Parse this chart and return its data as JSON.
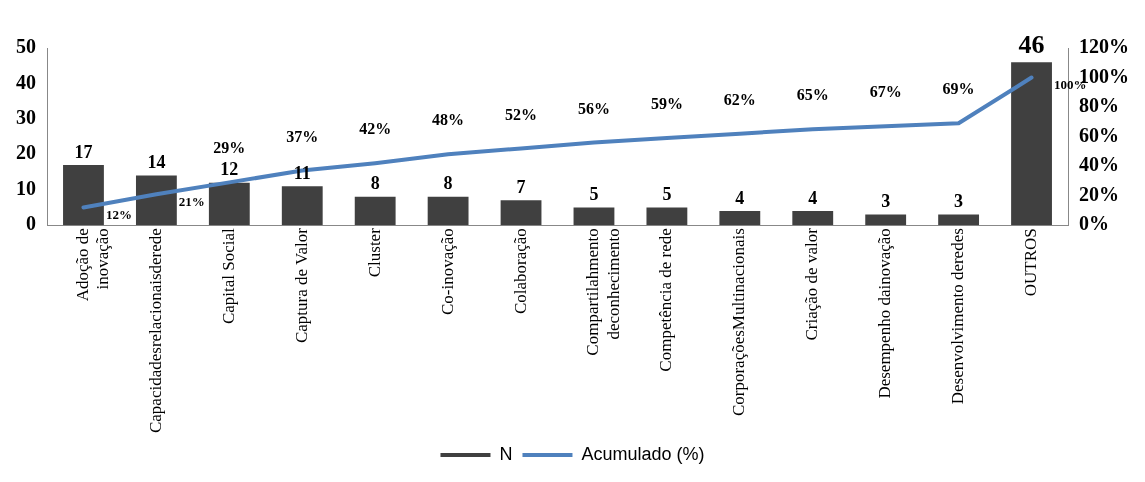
{
  "chart_data": {
    "type": "bar",
    "categories": [
      "Adoção de\ninovação",
      "Capacidadesrelacionaisderede",
      "Capital Social",
      "Captura de Valor",
      "Cluster",
      "Co-inovação",
      "Colaboração",
      "Compartilahmento\ndeconhecimento",
      "Competência de rede",
      "CorporaçõesMultinacionais",
      "Criação de valor",
      "Desempenho dainovação",
      "Desenvolvimento deredes",
      "OUTROS"
    ],
    "series": [
      {
        "name": "N",
        "color": "#404040",
        "values": [
          17,
          14,
          12,
          11,
          8,
          8,
          7,
          5,
          5,
          4,
          4,
          3,
          3,
          46
        ]
      },
      {
        "name": "Acumulado (%)",
        "type": "line",
        "axis": "y2",
        "color": "#4f81bd",
        "values": [
          12,
          21,
          29,
          37,
          42,
          48,
          52,
          56,
          59,
          62,
          65,
          67,
          69,
          100
        ],
        "value_labels": [
          "12%",
          "21%",
          "29%",
          "37%",
          "42%",
          "48%",
          "52%",
          "56%",
          "59%",
          "62%",
          "65%",
          "67%",
          "69%",
          "100%"
        ]
      }
    ],
    "ylim": [
      0,
      50
    ],
    "yticks": [
      0,
      10,
      20,
      30,
      40,
      50
    ],
    "y2lim": [
      0,
      120
    ],
    "y2ticks": [
      {
        "value": 0,
        "label": "0%"
      },
      {
        "value": 20,
        "label": "20%"
      },
      {
        "value": 40,
        "label": "40%"
      },
      {
        "value": 60,
        "label": "60%"
      },
      {
        "value": 80,
        "label": "80%"
      },
      {
        "value": 100,
        "label": "100%"
      },
      {
        "value": 120,
        "label": "120%"
      }
    ],
    "data_labels": true,
    "grid": false,
    "legend": "bottom",
    "marker": "none"
  }
}
